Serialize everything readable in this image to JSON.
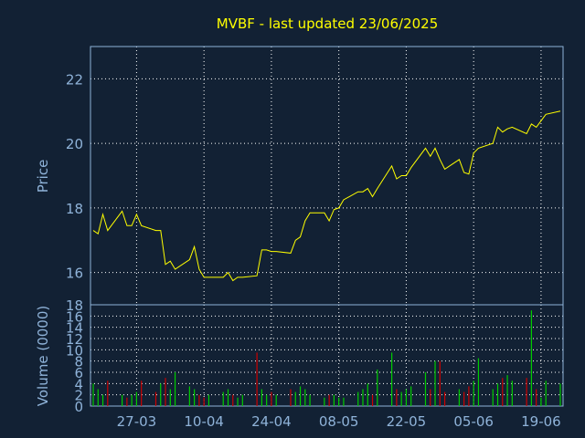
{
  "colors": {
    "background": "#122134",
    "frame": "#8fb3d9",
    "grid": "#ffffff",
    "axis_text": "#8fb3d9",
    "title": "#ffff00",
    "price_line": "#ffff00",
    "volume_up": "#00cc00",
    "volume_down": "#cc0000"
  },
  "chart_data": [
    {
      "type": "line",
      "title": "MVBF - last updated 23/06/2025",
      "ylabel": "Price",
      "ylim": [
        15,
        23
      ],
      "yticks": [
        16,
        18,
        20,
        22
      ],
      "x_range": [
        "2025-03-18",
        "2025-06-23"
      ],
      "xticks": [
        {
          "date": "2025-03-27",
          "label": "27-03"
        },
        {
          "date": "2025-04-10",
          "label": "10-04"
        },
        {
          "date": "2025-04-24",
          "label": "24-04"
        },
        {
          "date": "2025-05-08",
          "label": "08-05"
        },
        {
          "date": "2025-05-22",
          "label": "22-05"
        },
        {
          "date": "2025-06-05",
          "label": "05-06"
        },
        {
          "date": "2025-06-19",
          "label": "19-06"
        }
      ],
      "grid": true,
      "series": [
        {
          "x": [
            "2025-03-18",
            "2025-03-19",
            "2025-03-20",
            "2025-03-21",
            "2025-03-24",
            "2025-03-25",
            "2025-03-26",
            "2025-03-27",
            "2025-03-28",
            "2025-03-31",
            "2025-04-01",
            "2025-04-02",
            "2025-04-03",
            "2025-04-04",
            "2025-04-07",
            "2025-04-08",
            "2025-04-09",
            "2025-04-10",
            "2025-04-11",
            "2025-04-14",
            "2025-04-15",
            "2025-04-16",
            "2025-04-17",
            "2025-04-18",
            "2025-04-21",
            "2025-04-22",
            "2025-04-23",
            "2025-04-24",
            "2025-04-25",
            "2025-04-28",
            "2025-04-29",
            "2025-04-30",
            "2025-05-01",
            "2025-05-02",
            "2025-05-05",
            "2025-05-06",
            "2025-05-07",
            "2025-05-08",
            "2025-05-09",
            "2025-05-12",
            "2025-05-13",
            "2025-05-14",
            "2025-05-15",
            "2025-05-16",
            "2025-05-19",
            "2025-05-20",
            "2025-05-21",
            "2025-05-22",
            "2025-05-23",
            "2025-05-26",
            "2025-05-27",
            "2025-05-28",
            "2025-05-29",
            "2025-05-30",
            "2025-06-02",
            "2025-06-03",
            "2025-06-04",
            "2025-06-05",
            "2025-06-06",
            "2025-06-09",
            "2025-06-10",
            "2025-06-11",
            "2025-06-12",
            "2025-06-13",
            "2025-06-16",
            "2025-06-17",
            "2025-06-18",
            "2025-06-19",
            "2025-06-20",
            "2025-06-23"
          ],
          "values": [
            17.3,
            17.2,
            17.8,
            17.3,
            17.9,
            17.45,
            17.45,
            17.8,
            17.45,
            17.3,
            17.3,
            16.25,
            16.35,
            16.1,
            16.4,
            16.8,
            16.1,
            15.85,
            15.85,
            15.85,
            16.0,
            15.75,
            15.85,
            15.85,
            15.9,
            16.7,
            16.7,
            16.65,
            16.65,
            16.6,
            17.0,
            17.1,
            17.6,
            17.85,
            17.85,
            17.6,
            17.95,
            18.0,
            18.25,
            18.5,
            18.5,
            18.6,
            18.35,
            18.6,
            19.3,
            18.9,
            19.0,
            19.0,
            19.25,
            19.85,
            19.6,
            19.85,
            19.5,
            19.2,
            19.5,
            19.1,
            19.05,
            19.7,
            19.85,
            20.0,
            20.5,
            20.35,
            20.45,
            20.5,
            20.3,
            20.6,
            20.5,
            20.7,
            20.9,
            21.0
          ]
        }
      ]
    },
    {
      "type": "bar",
      "ylabel": "Volume (0000)",
      "ylim": [
        0,
        18
      ],
      "yticks": [
        0,
        2,
        4,
        6,
        8,
        10,
        12,
        14,
        16,
        18
      ],
      "x_range": [
        "2025-03-18",
        "2025-06-23"
      ],
      "xticks": [
        {
          "date": "2025-03-27",
          "label": "27-03"
        },
        {
          "date": "2025-04-10",
          "label": "10-04"
        },
        {
          "date": "2025-04-24",
          "label": "24-04"
        },
        {
          "date": "2025-05-08",
          "label": "08-05"
        },
        {
          "date": "2025-05-22",
          "label": "22-05"
        },
        {
          "date": "2025-06-05",
          "label": "05-06"
        },
        {
          "date": "2025-06-19",
          "label": "19-06"
        }
      ],
      "grid": true,
      "series": [
        {
          "x": [
            "2025-03-18",
            "2025-03-19",
            "2025-03-20",
            "2025-03-21",
            "2025-03-24",
            "2025-03-25",
            "2025-03-26",
            "2025-03-27",
            "2025-03-28",
            "2025-03-31",
            "2025-04-01",
            "2025-04-02",
            "2025-04-03",
            "2025-04-04",
            "2025-04-07",
            "2025-04-08",
            "2025-04-09",
            "2025-04-10",
            "2025-04-11",
            "2025-04-14",
            "2025-04-15",
            "2025-04-16",
            "2025-04-17",
            "2025-04-18",
            "2025-04-21",
            "2025-04-22",
            "2025-04-23",
            "2025-04-24",
            "2025-04-25",
            "2025-04-28",
            "2025-04-29",
            "2025-04-30",
            "2025-05-01",
            "2025-05-02",
            "2025-05-05",
            "2025-05-06",
            "2025-05-07",
            "2025-05-08",
            "2025-05-09",
            "2025-05-12",
            "2025-05-13",
            "2025-05-14",
            "2025-05-15",
            "2025-05-16",
            "2025-05-19",
            "2025-05-20",
            "2025-05-21",
            "2025-05-22",
            "2025-05-23",
            "2025-05-26",
            "2025-05-27",
            "2025-05-28",
            "2025-05-29",
            "2025-05-30",
            "2025-06-02",
            "2025-06-03",
            "2025-06-04",
            "2025-06-05",
            "2025-06-06",
            "2025-06-09",
            "2025-06-10",
            "2025-06-11",
            "2025-06-12",
            "2025-06-13",
            "2025-06-16",
            "2025-06-17",
            "2025-06-18",
            "2025-06-19",
            "2025-06-20",
            "2025-06-23"
          ],
          "values": [
            4.0,
            3.0,
            2.0,
            4.5,
            2.0,
            1.5,
            2.0,
            2.5,
            4.5,
            2.5,
            4.0,
            5.0,
            3.0,
            6.0,
            3.5,
            3.0,
            2.0,
            1.5,
            2.0,
            2.5,
            3.0,
            2.0,
            1.5,
            2.0,
            9.5,
            3.0,
            2.0,
            2.5,
            2.0,
            3.0,
            2.5,
            3.5,
            3.0,
            2.0,
            1.5,
            2.0,
            2.0,
            1.5,
            1.5,
            2.5,
            3.0,
            4.0,
            2.0,
            6.5,
            9.5,
            3.0,
            2.5,
            3.0,
            3.5,
            6.0,
            3.0,
            8.0,
            8.0,
            2.5,
            3.0,
            2.5,
            3.5,
            4.5,
            8.5,
            3.0,
            4.0,
            5.0,
            5.5,
            4.5,
            5.0,
            17.0,
            3.0,
            1.5,
            4.5,
            4.0
          ],
          "direction": [
            "up",
            "up",
            "up",
            "down",
            "up",
            "down",
            "up",
            "up",
            "down",
            "down",
            "up",
            "down",
            "up",
            "up",
            "up",
            "up",
            "down",
            "down",
            "up",
            "up",
            "up",
            "down",
            "up",
            "up",
            "down",
            "up",
            "up",
            "down",
            "up",
            "down",
            "up",
            "up",
            "up",
            "up",
            "up",
            "down",
            "up",
            "up",
            "up",
            "up",
            "up",
            "up",
            "down",
            "up",
            "up",
            "down",
            "up",
            "up",
            "up",
            "up",
            "down",
            "up",
            "down",
            "down",
            "up",
            "down",
            "down",
            "up",
            "up",
            "up",
            "up",
            "down",
            "up",
            "up",
            "down",
            "up",
            "down",
            "up",
            "up",
            "up"
          ]
        }
      ]
    }
  ]
}
